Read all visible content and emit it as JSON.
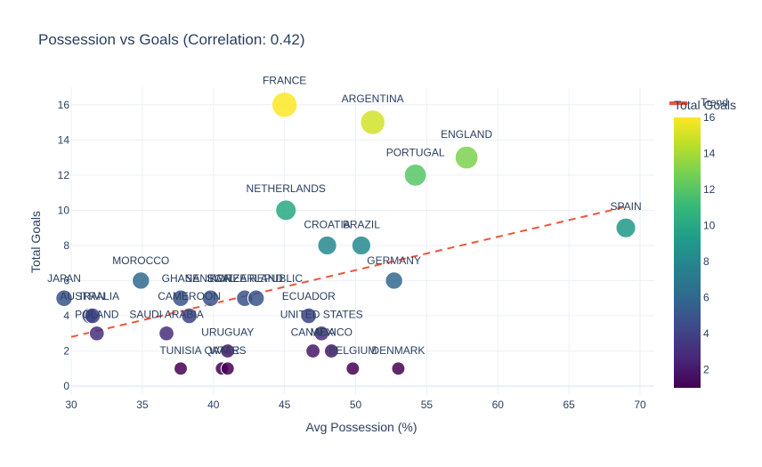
{
  "chart_data": {
    "type": "scatter",
    "title": "Possession vs Goals (Correlation: 0.42)",
    "xlabel": "Avg Possession (%)",
    "ylabel": "Total Goals",
    "xlim": [
      30,
      71
    ],
    "ylim": [
      -0.5,
      17
    ],
    "x_ticks": [
      30,
      35,
      40,
      45,
      50,
      55,
      60,
      65,
      70
    ],
    "y_ticks": [
      0,
      2,
      4,
      6,
      8,
      10,
      12,
      14,
      16
    ],
    "grid": true,
    "colorbar": {
      "title": "Total Goals",
      "ticks": [
        2,
        4,
        6,
        8,
        10,
        12,
        14,
        16
      ],
      "range": [
        1,
        16
      ],
      "colorscale": "Viridis"
    },
    "legend": {
      "entries": [
        "Trend"
      ],
      "placement": "top-right"
    },
    "trendline": {
      "name": "Trend",
      "color": "#ef553b",
      "x": [
        30,
        69
      ],
      "y": [
        2.8,
        10.2
      ]
    },
    "points": [
      {
        "label": "FRANCE",
        "x": 45.0,
        "y": 16
      },
      {
        "label": "ARGENTINA",
        "x": 51.2,
        "y": 15
      },
      {
        "label": "ENGLAND",
        "x": 57.8,
        "y": 13
      },
      {
        "label": "PORTUGAL",
        "x": 54.2,
        "y": 12
      },
      {
        "label": "NETHERLANDS",
        "x": 45.1,
        "y": 10
      },
      {
        "label": "SPAIN",
        "x": 69.0,
        "y": 9
      },
      {
        "label": "CROATIA",
        "x": 48.0,
        "y": 8
      },
      {
        "label": "BRAZIL",
        "x": 50.4,
        "y": 8
      },
      {
        "label": "MOROCCO",
        "x": 34.9,
        "y": 6
      },
      {
        "label": "GERMANY",
        "x": 52.7,
        "y": 6
      },
      {
        "label": "JAPAN",
        "x": 29.5,
        "y": 5
      },
      {
        "label": "GHANA",
        "x": 37.7,
        "y": 5
      },
      {
        "label": "SENEGAL",
        "x": 39.8,
        "y": 5
      },
      {
        "label": "SWITZERLAND",
        "x": 42.2,
        "y": 5
      },
      {
        "label": "KOREA REPUBLIC",
        "x": 43.0,
        "y": 5
      },
      {
        "label": "AUSTRALIA",
        "x": 31.3,
        "y": 4
      },
      {
        "label": "IRAN",
        "x": 31.5,
        "y": 4
      },
      {
        "label": "CAMEROON",
        "x": 38.3,
        "y": 4
      },
      {
        "label": "ECUADOR",
        "x": 46.7,
        "y": 4
      },
      {
        "label": "POLAND",
        "x": 31.8,
        "y": 3
      },
      {
        "label": "SAUDI ARABIA",
        "x": 36.7,
        "y": 3
      },
      {
        "label": "UNITED STATES",
        "x": 47.6,
        "y": 3
      },
      {
        "label": "URUGUAY",
        "x": 41.0,
        "y": 2
      },
      {
        "label": "CANADA",
        "x": 47.0,
        "y": 2
      },
      {
        "label": "MEXICO",
        "x": 48.3,
        "y": 2
      },
      {
        "label": "TUNISIA",
        "x": 37.7,
        "y": 1
      },
      {
        "label": "QATAR",
        "x": 40.6,
        "y": 1
      },
      {
        "label": "WALES",
        "x": 41.0,
        "y": 1
      },
      {
        "label": "BELGIUM",
        "x": 49.8,
        "y": 1
      },
      {
        "label": "DENMARK",
        "x": 53.0,
        "y": 1
      }
    ]
  }
}
